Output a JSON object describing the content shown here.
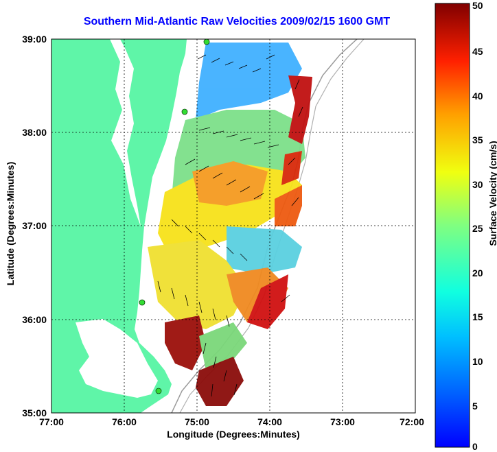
{
  "title": "Southern Mid-Atlantic Raw Velocities 2009/02/15 1600 GMT",
  "x_axis": {
    "label": "Longitude (Degrees:Minutes)",
    "ticks": [
      "77:00",
      "76:00",
      "75:00",
      "74:00",
      "73:00",
      "72:00"
    ]
  },
  "y_axis": {
    "label": "Latitude (Degrees:Minutes)",
    "ticks": [
      "39:00",
      "38:00",
      "37:00",
      "36:00",
      "35:00"
    ]
  },
  "colorbar": {
    "label": "Surface Velocity (cm/s)",
    "ticks": [
      "0",
      "5",
      "10",
      "15",
      "20",
      "25",
      "30",
      "35",
      "40",
      "45",
      "50"
    ],
    "min": 0,
    "max": 50,
    "colormap": "jet"
  },
  "colors": {
    "land": "#5ff5a8",
    "water": "#ffffff",
    "title": "#0000ff",
    "gridline": "#000000",
    "bathymetry": "#9a9a9a",
    "station": "#33dd33"
  },
  "map_extent": {
    "lon_min": -77,
    "lon_max": -72,
    "lat_min": 35,
    "lat_max": 39
  }
}
